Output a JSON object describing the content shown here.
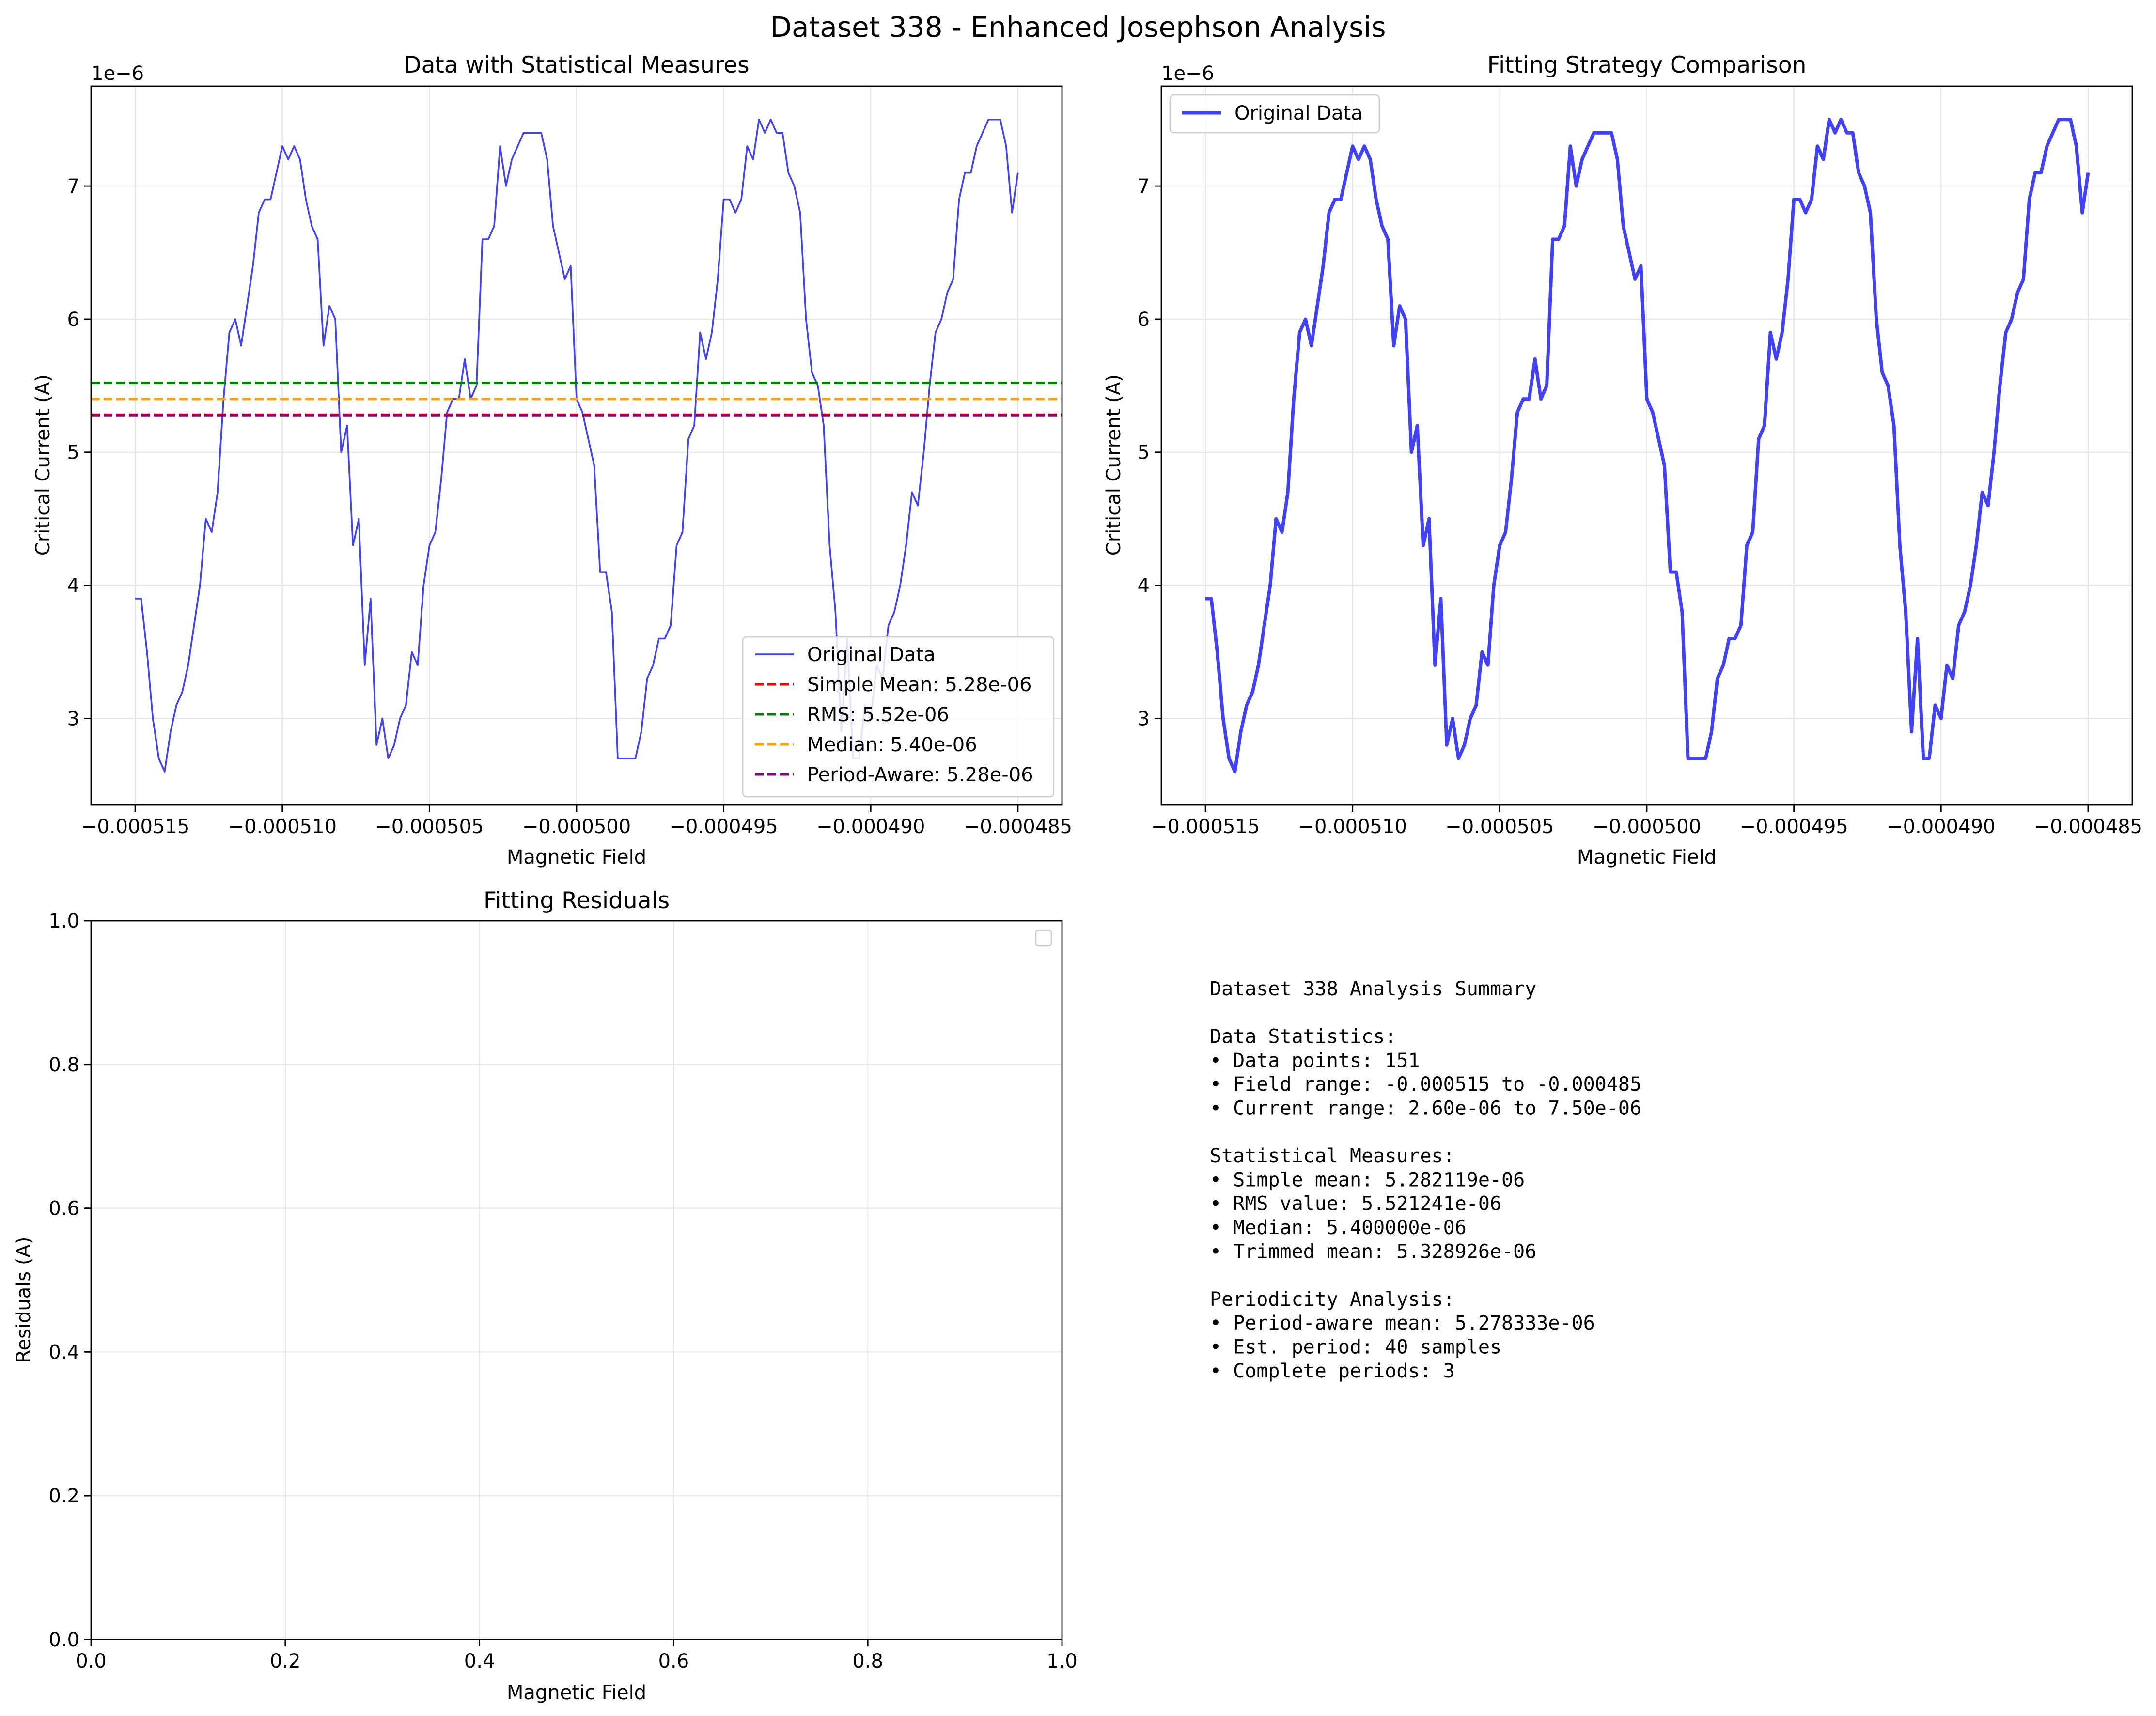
{
  "figure": {
    "title": "Dataset 338 - Enhanced Josephson Analysis"
  },
  "panels": {
    "top_left": {
      "title": "Data with Statistical Measures",
      "xlabel": "Magnetic Field",
      "ylabel": "Critical Current (A)",
      "offset_label": "1e−6",
      "legend": [
        "Original Data",
        "Simple Mean: 5.28e-06",
        "RMS: 5.52e-06",
        "Median: 5.40e-06",
        "Period-Aware: 5.28e-06"
      ]
    },
    "top_right": {
      "title": "Fitting Strategy Comparison",
      "xlabel": "Magnetic Field",
      "ylabel": "Critical Current (A)",
      "offset_label": "1e−6",
      "legend": [
        "Original Data"
      ]
    },
    "bottom_left": {
      "title": "Fitting Residuals",
      "xlabel": "Magnetic Field",
      "ylabel": "Residuals (A)"
    }
  },
  "summary": {
    "lines": [
      "Dataset 338 Analysis Summary",
      "",
      "Data Statistics:",
      "• Data points: 151",
      "• Field range: -0.000515 to -0.000485",
      "• Current range: 2.60e-06 to 7.50e-06",
      "",
      "Statistical Measures:",
      "• Simple mean: 5.282119e-06",
      "• RMS value: 5.521241e-06",
      "• Median: 5.400000e-06",
      "• Trimmed mean: 5.328926e-06",
      "",
      "Periodicity Analysis:",
      "• Period-aware mean: 5.278333e-06",
      "• Est. period: 40 samples",
      "• Complete periods: 3"
    ]
  },
  "colors": {
    "data": "#0000ff",
    "simple_mean": "#ff0000",
    "rms": "#008000",
    "median": "#ffa500",
    "period_aware": "#800080"
  },
  "chart_data": [
    {
      "type": "line",
      "title": "Data with Statistical Measures",
      "xlabel": "Magnetic Field",
      "ylabel": "Critical Current (A)",
      "y_scale_factor": "1e-6",
      "xlim": [
        -0.0005165,
        -0.0004835
      ],
      "ylim": [
        2.35,
        7.75
      ],
      "xticks": [
        -0.000515,
        -0.00051,
        -0.000505,
        -0.0005,
        -0.000495,
        -0.00049,
        -0.000485
      ],
      "xtick_labels": [
        "−0.000515",
        "−0.000510",
        "−0.000505",
        "−0.000500",
        "−0.000495",
        "−0.000490",
        "−0.000485"
      ],
      "yticks": [
        3,
        4,
        5,
        6,
        7
      ],
      "grid": true,
      "legend_position": "lower right",
      "x_start": -0.000515,
      "x_end": -0.000485,
      "series": [
        {
          "name": "Original Data",
          "style": "solid-thin",
          "values": [
            3.9,
            3.9,
            3.5,
            3.0,
            2.7,
            2.6,
            2.9,
            3.1,
            3.2,
            3.4,
            3.7,
            4.0,
            4.5,
            4.4,
            4.7,
            5.4,
            5.9,
            6.0,
            5.8,
            6.1,
            6.4,
            6.8,
            6.9,
            6.9,
            7.1,
            7.3,
            7.2,
            7.3,
            7.2,
            6.9,
            6.7,
            6.6,
            5.8,
            6.1,
            6.0,
            5.0,
            5.2,
            4.3,
            4.5,
            3.4,
            3.9,
            2.8,
            3.0,
            2.7,
            2.8,
            3.0,
            3.1,
            3.5,
            3.4,
            4.0,
            4.3,
            4.4,
            4.8,
            5.3,
            5.4,
            5.4,
            5.7,
            5.4,
            5.5,
            6.6,
            6.6,
            6.7,
            7.3,
            7.0,
            7.2,
            7.3,
            7.4,
            7.4,
            7.4,
            7.4,
            7.2,
            6.7,
            6.5,
            6.3,
            6.4,
            5.4,
            5.3,
            5.1,
            4.9,
            4.1,
            4.1,
            3.8,
            2.7,
            2.7,
            2.7,
            2.7,
            2.9,
            3.3,
            3.4,
            3.6,
            3.6,
            3.7,
            4.3,
            4.4,
            5.1,
            5.2,
            5.9,
            5.7,
            5.9,
            6.3,
            6.9,
            6.9,
            6.8,
            6.9,
            7.3,
            7.2,
            7.5,
            7.4,
            7.5,
            7.4,
            7.4,
            7.1,
            7.0,
            6.8,
            6.0,
            5.6,
            5.5,
            5.2,
            4.3,
            3.8,
            2.9,
            3.6,
            2.7,
            2.7,
            3.1,
            3.0,
            3.4,
            3.3,
            3.7,
            3.8,
            4.0,
            4.3,
            4.7,
            4.6,
            5.0,
            5.5,
            5.9,
            6.0,
            6.2,
            6.3,
            6.9,
            7.1,
            7.1,
            7.3,
            7.4,
            7.5,
            7.5,
            7.5,
            7.3,
            6.8,
            7.1
          ]
        },
        {
          "name": "Simple Mean: 5.28e-06",
          "style": "dashed",
          "value": 5.282119
        },
        {
          "name": "RMS: 5.52e-06",
          "style": "dashed",
          "value": 5.521241
        },
        {
          "name": "Median: 5.40e-06",
          "style": "dashed",
          "value": 5.4
        },
        {
          "name": "Period-Aware: 5.28e-06",
          "style": "dashed",
          "value": 5.278333
        }
      ]
    },
    {
      "type": "line",
      "title": "Fitting Strategy Comparison",
      "xlabel": "Magnetic Field",
      "ylabel": "Critical Current (A)",
      "y_scale_factor": "1e-6",
      "xlim": [
        -0.0005165,
        -0.0004835
      ],
      "ylim": [
        2.35,
        7.75
      ],
      "xticks": [
        -0.000515,
        -0.00051,
        -0.000505,
        -0.0005,
        -0.000495,
        -0.00049,
        -0.000485
      ],
      "xtick_labels": [
        "−0.000515",
        "−0.000510",
        "−0.000505",
        "−0.000500",
        "−0.000495",
        "−0.000490",
        "−0.000485"
      ],
      "yticks": [
        3,
        4,
        5,
        6,
        7
      ],
      "grid": true,
      "legend_position": "upper left",
      "series": [
        {
          "name": "Original Data",
          "style": "solid-thick",
          "same_values_as": "Data with Statistical Measures / Original Data"
        }
      ]
    },
    {
      "type": "line",
      "title": "Fitting Residuals",
      "xlabel": "Magnetic Field",
      "ylabel": "Residuals (A)",
      "xlim": [
        0,
        1
      ],
      "ylim": [
        0,
        1
      ],
      "xticks": [
        0,
        0.2,
        0.4,
        0.6,
        0.8,
        1
      ],
      "xtick_labels": [
        "0.0",
        "0.2",
        "0.4",
        "0.6",
        "0.8",
        "1.0"
      ],
      "yticks": [
        0,
        0.2,
        0.4,
        0.6,
        0.8,
        1
      ],
      "ytick_labels": [
        "0.0",
        "0.2",
        "0.4",
        "0.6",
        "0.8",
        "1.0"
      ],
      "grid": true,
      "legend_position": "upper right",
      "series": []
    }
  ]
}
